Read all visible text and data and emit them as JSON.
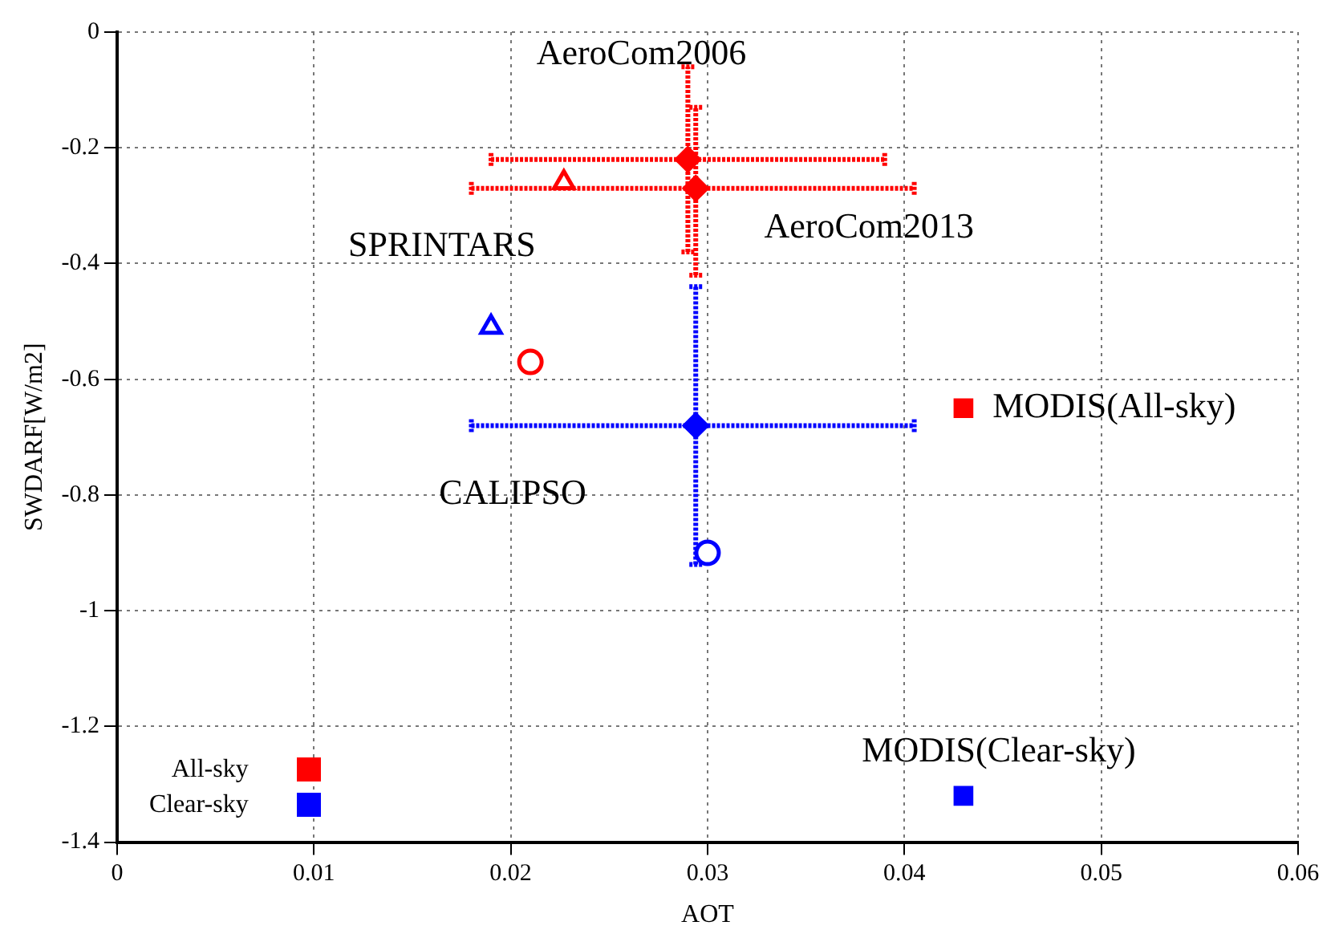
{
  "chart_data": {
    "type": "scatter",
    "xlabel": "AOT",
    "ylabel": "SWDARF[W/m2]",
    "xlim": [
      0,
      0.06
    ],
    "xticks": [
      0,
      0.01,
      0.02,
      0.03,
      0.04,
      0.05,
      0.06
    ],
    "ylim": [
      -1.4,
      0
    ],
    "yticks": [
      -1.4,
      -1.2,
      -1,
      -0.8,
      -0.6,
      -0.4,
      -0.2,
      0
    ],
    "grid": true,
    "legend": "bottom left",
    "series": [
      {
        "name": "All-sky",
        "color": "#ff0000",
        "marker": "square",
        "x": [
          0.043
        ],
        "values": [
          -0.65
        ]
      },
      {
        "name": "Clear-sky",
        "color": "#0000ff",
        "marker": "square",
        "x": [
          0.043
        ],
        "values": [
          -1.32
        ]
      },
      {
        "color": "#ff0000",
        "marker": "diamond",
        "x": [
          0.029,
          0.0294
        ],
        "values": [
          -0.22,
          -0.27
        ],
        "errors": [
          [
            -0.38,
            -0.06
          ],
          [
            -0.42,
            -0.13
          ]
        ],
        "xerrors": [
          [
            0.019,
            0.039
          ],
          [
            0.018,
            0.0405
          ]
        ]
      },
      {
        "color": "#0000ff",
        "marker": "diamond",
        "x": [
          0.0294
        ],
        "values": [
          -0.68
        ],
        "errors": [
          [
            -0.92,
            -0.44
          ]
        ],
        "xerrors": [
          [
            0.018,
            0.0405
          ]
        ]
      },
      {
        "color": "#ff0000",
        "marker": "triangle",
        "x": [
          0.0227
        ],
        "values": [
          -0.26
        ]
      },
      {
        "color": "#0000ff",
        "marker": "triangle",
        "x": [
          0.019
        ],
        "values": [
          -0.51
        ]
      },
      {
        "color": "#ff0000",
        "marker": "circle",
        "x": [
          0.021
        ],
        "values": [
          -0.57
        ]
      },
      {
        "color": "#0000ff",
        "marker": "circle",
        "x": [
          0.03
        ],
        "values": [
          -0.9
        ]
      }
    ],
    "annotations": [
      {
        "text": "AeroCom2006",
        "x": 0.029,
        "y": -0.22
      },
      {
        "text": "AeroCom2013",
        "x": 0.0294,
        "y": -0.27
      },
      {
        "text": "SPRINTARS",
        "x": 0.0227,
        "y": -0.26
      },
      "CALIPSO",
      {
        "text": "MODIS(All-sky)",
        "x": 0.043,
        "y": -0.65
      },
      {
        "text": "MODIS(Clear-sky)",
        "x": 0.043,
        "y": -1.32
      }
    ]
  }
}
